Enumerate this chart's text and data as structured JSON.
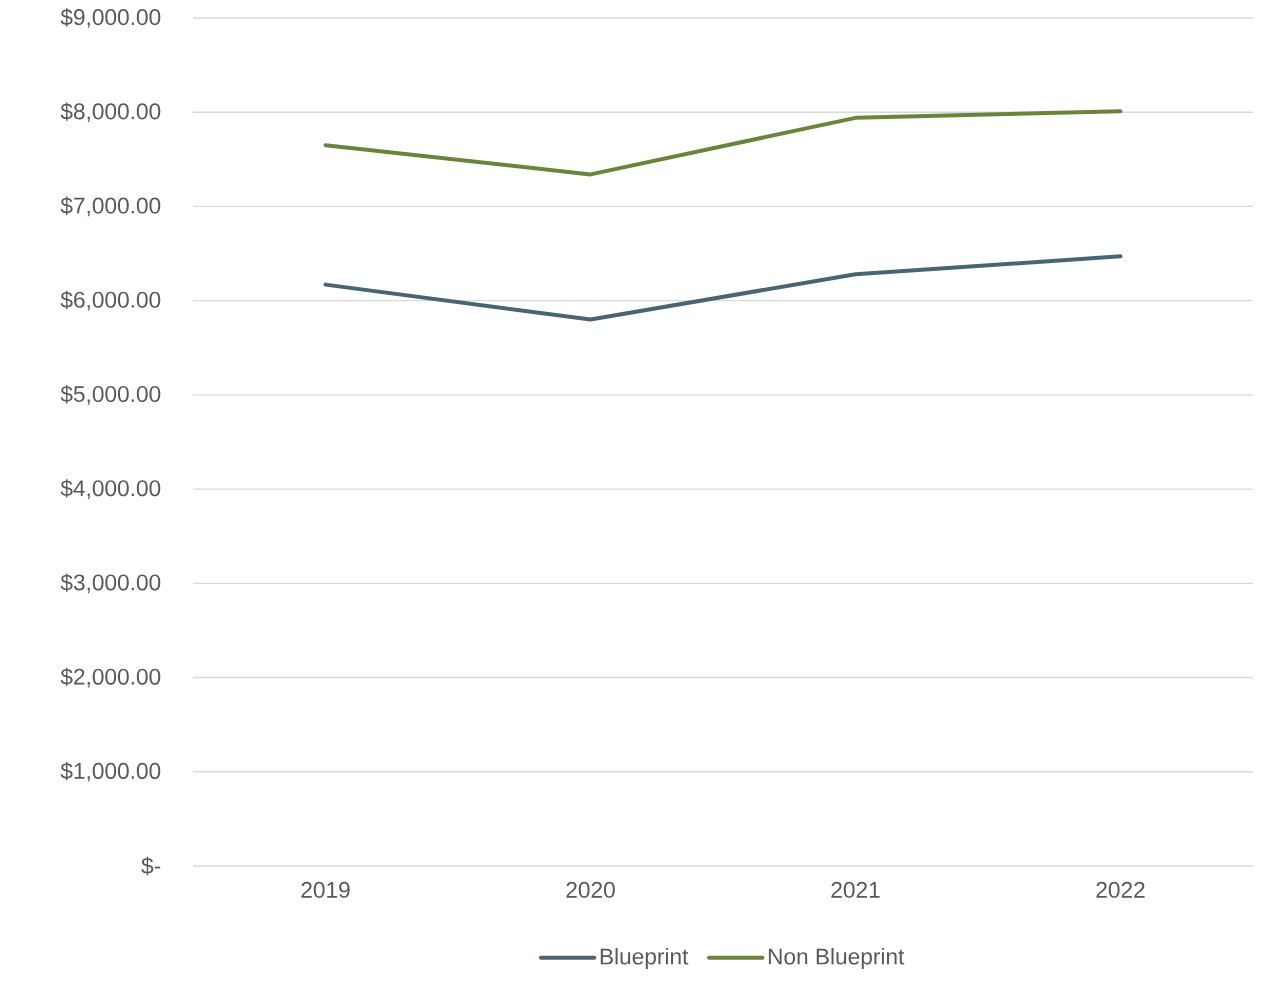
{
  "chart_data": {
    "type": "line",
    "categories": [
      "2019",
      "2020",
      "2021",
      "2022"
    ],
    "series": [
      {
        "name": "Blueprint",
        "color": "#4a6572",
        "values": [
          6170,
          5800,
          6280,
          6470
        ]
      },
      {
        "name": "Non Blueprint",
        "color": "#6a843c",
        "values": [
          7650,
          7340,
          7940,
          8010
        ]
      }
    ],
    "ylim": [
      0,
      9000
    ],
    "yticks": [
      {
        "value": 0,
        "label": "$-"
      },
      {
        "value": 1000,
        "label": "$1,000.00"
      },
      {
        "value": 2000,
        "label": "$2,000.00"
      },
      {
        "value": 3000,
        "label": "$3,000.00"
      },
      {
        "value": 4000,
        "label": "$4,000.00"
      },
      {
        "value": 5000,
        "label": "$5,000.00"
      },
      {
        "value": 6000,
        "label": "$6,000.00"
      },
      {
        "value": 7000,
        "label": "$7,000.00"
      },
      {
        "value": 8000,
        "label": "$8,000.00"
      },
      {
        "value": 9000,
        "label": "$9,000.00"
      }
    ],
    "grid": "y",
    "legend": "bottom",
    "marker": "none",
    "line_style": "solid"
  }
}
